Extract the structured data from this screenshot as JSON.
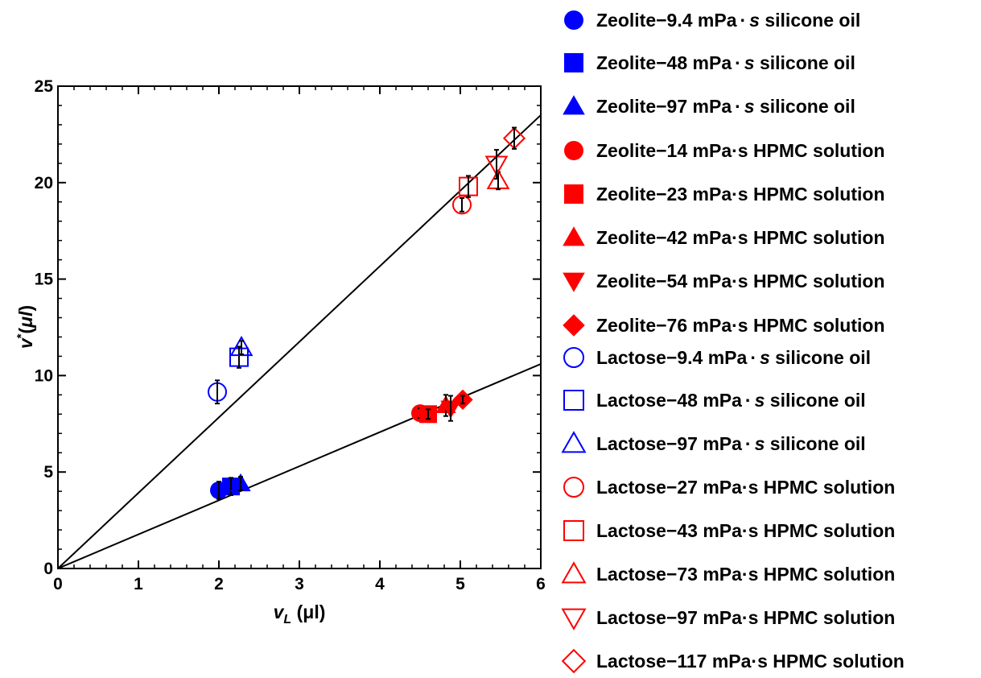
{
  "chart_data": {
    "type": "scatter",
    "xlim": [
      0,
      6
    ],
    "ylim": [
      0,
      25
    ],
    "x_ticks": [
      "0",
      "1",
      "2",
      "3",
      "4",
      "5",
      "6"
    ],
    "y_ticks": [
      "0",
      "5",
      "10",
      "15",
      "20",
      "25"
    ],
    "xlabel_main": "v",
    "xlabel_sub": "L",
    "xlabel_unit": " (μl)",
    "ylabel_main": "v",
    "ylabel_sup": "*",
    "ylabel_paren_open": "(",
    "ylabel_unit": "μl",
    "ylabel_paren_close": ")",
    "grid": false,
    "legend_position": "right",
    "fit_lines": [
      {
        "slope": 3.92,
        "x": [
          0,
          6
        ],
        "y": [
          0,
          23.5
        ]
      },
      {
        "slope": 1.765,
        "x": [
          0,
          6
        ],
        "y": [
          0,
          10.6
        ]
      }
    ],
    "series": [
      {
        "name": "Zeolite−9.4 mPa·s silicone oil",
        "marker": "circle",
        "fill": "filled",
        "color": "#0000ff",
        "points": [
          {
            "x": 2.0,
            "y": 4.05,
            "err": 0.45
          }
        ]
      },
      {
        "name": "Zeolite−48 mPa·s silicone oil",
        "marker": "square",
        "fill": "filled",
        "color": "#0000ff",
        "points": [
          {
            "x": 2.15,
            "y": 4.25,
            "err": 0.45
          }
        ]
      },
      {
        "name": "Zeolite−97 mPa·s silicone oil",
        "marker": "triangle-up",
        "fill": "filled",
        "color": "#0000ff",
        "points": [
          {
            "x": 2.27,
            "y": 4.4,
            "err": 0.35
          }
        ]
      },
      {
        "name": "Zeolite−14 mPa·s HPMC solution",
        "marker": "circle",
        "fill": "filled",
        "color": "#ff0000",
        "points": [
          {
            "x": 4.5,
            "y": 8.05,
            "err": 0.25
          }
        ]
      },
      {
        "name": "Zeolite−23 mPa·s HPMC solution",
        "marker": "square",
        "fill": "filled",
        "color": "#ff0000",
        "points": [
          {
            "x": 4.6,
            "y": 8.0,
            "err": 0.25
          }
        ]
      },
      {
        "name": "Zeolite−42 mPa·s HPMC solution",
        "marker": "triangle-up",
        "fill": "filled",
        "color": "#ff0000",
        "points": [
          {
            "x": 4.82,
            "y": 8.45,
            "err": 0.55
          }
        ]
      },
      {
        "name": "Zeolite−54 mPa·s HPMC solution",
        "marker": "triangle-down",
        "fill": "filled",
        "color": "#ff0000",
        "points": [
          {
            "x": 4.88,
            "y": 8.3,
            "err": 0.65
          }
        ]
      },
      {
        "name": "Zeolite−76 mPa·s HPMC solution",
        "marker": "diamond",
        "fill": "filled",
        "color": "#ff0000",
        "points": [
          {
            "x": 5.03,
            "y": 8.75,
            "err": 0.2
          }
        ]
      },
      {
        "name": "Lactose−9.4 mPa·s silicone oil",
        "marker": "circle",
        "fill": "open",
        "color": "#0000ff",
        "points": [
          {
            "x": 1.98,
            "y": 9.15,
            "err": 0.6
          }
        ]
      },
      {
        "name": "Lactose−48 mPa·s silicone oil",
        "marker": "square",
        "fill": "open",
        "color": "#0000ff",
        "points": [
          {
            "x": 2.25,
            "y": 10.95,
            "err": 0.55
          }
        ]
      },
      {
        "name": "Lactose−97 mPa·s silicone oil",
        "marker": "triangle-up",
        "fill": "open",
        "color": "#0000ff",
        "points": [
          {
            "x": 2.28,
            "y": 11.45,
            "err": 0.35
          }
        ]
      },
      {
        "name": "Lactose−27 mPa·s HPMC solution",
        "marker": "circle",
        "fill": "open",
        "color": "#ff0000",
        "points": [
          {
            "x": 5.02,
            "y": 18.85,
            "err": 0.35
          }
        ]
      },
      {
        "name": "Lactose−43 mPa·s HPMC solution",
        "marker": "square",
        "fill": "open",
        "color": "#ff0000",
        "points": [
          {
            "x": 5.1,
            "y": 19.8,
            "err": 0.55
          }
        ]
      },
      {
        "name": "Lactose−73 mPa·s HPMC solution",
        "marker": "triangle-up",
        "fill": "open",
        "color": "#ff0000",
        "points": [
          {
            "x": 5.47,
            "y": 20.1,
            "err": 0.45
          }
        ]
      },
      {
        "name": "Lactose−97 mPa·s HPMC solution",
        "marker": "triangle-down",
        "fill": "open",
        "color": "#ff0000",
        "points": [
          {
            "x": 5.45,
            "y": 20.95,
            "err": 0.75
          }
        ]
      },
      {
        "name": "Lactose−117 mPa·s HPMC solution",
        "marker": "diamond",
        "fill": "open",
        "color": "#ff0000",
        "points": [
          {
            "x": 5.67,
            "y": 22.3,
            "err": 0.55
          }
        ]
      }
    ]
  },
  "legend": {
    "items": [
      {
        "prefix": "Zeolite−9.4 mPa",
        "dot": "·",
        "italic": "s",
        "suffix": " silicone oil"
      },
      {
        "prefix": "Zeolite−48 mPa",
        "dot": "·",
        "italic": "s",
        "suffix": " silicone oil"
      },
      {
        "prefix": "Zeolite−97 mPa",
        "dot": "·",
        "italic": "s",
        "suffix": " silicone oil"
      },
      {
        "prefix": "Zeolite−14 mPa·s HPMC solution"
      },
      {
        "prefix": "Zeolite−23 mPa·s HPMC solution"
      },
      {
        "prefix": "Zeolite−42 mPa·s HPMC solution"
      },
      {
        "prefix": "Zeolite−54 mPa·s HPMC solution"
      },
      {
        "prefix": "Zeolite−76 mPa·s HPMC solution"
      },
      {
        "prefix": "Lactose−9.4 mPa",
        "dot": "·",
        "italic": "s",
        "suffix": " silicone oil"
      },
      {
        "prefix": "Lactose−48 mPa",
        "dot": "·",
        "italic": "s",
        "suffix": " silicone oil"
      },
      {
        "prefix": "Lactose−97 mPa",
        "dot": "·",
        "italic": "s",
        "suffix": " silicone oil"
      },
      {
        "prefix": "Lactose−27 mPa·s HPMC solution"
      },
      {
        "prefix": "Lactose−43 mPa·s HPMC solution"
      },
      {
        "prefix": "Lactose−73 mPa·s HPMC solution"
      },
      {
        "prefix": "Lactose−97 mPa·s HPMC solution"
      },
      {
        "prefix": "Lactose−117 mPa·s HPMC solution"
      }
    ]
  }
}
